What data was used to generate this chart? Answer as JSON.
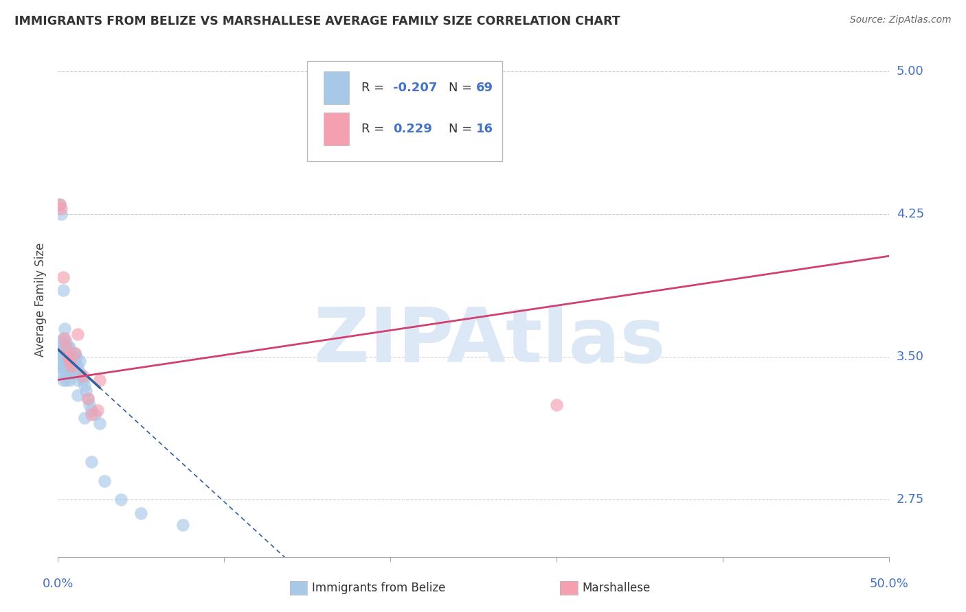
{
  "title": "IMMIGRANTS FROM BELIZE VS MARSHALLESE AVERAGE FAMILY SIZE CORRELATION CHART",
  "source": "Source: ZipAtlas.com",
  "ylabel": "Average Family Size",
  "watermark": "ZIPAtlas",
  "xlim": [
    0.0,
    0.5
  ],
  "ylim": [
    2.45,
    5.15
  ],
  "yticks": [
    2.75,
    3.5,
    4.25,
    5.0
  ],
  "belize_R": -0.207,
  "belize_N": 69,
  "marshallese_R": 0.229,
  "marshallese_N": 16,
  "belize_color": "#a8c8e8",
  "marshallese_color": "#f4a0b0",
  "belize_line_color": "#3060a0",
  "marshallese_line_color": "#d04070",
  "legend_text_color": "#4472c4",
  "axis_color": "#4472c4",
  "background_color": "#ffffff",
  "grid_color": "#cccccc",
  "title_color": "#333333",
  "watermark_color": "#dce8f5",
  "belize_x": [
    0.001,
    0.001,
    0.001,
    0.002,
    0.002,
    0.002,
    0.002,
    0.003,
    0.003,
    0.003,
    0.003,
    0.003,
    0.004,
    0.004,
    0.004,
    0.004,
    0.005,
    0.005,
    0.005,
    0.005,
    0.005,
    0.006,
    0.006,
    0.006,
    0.006,
    0.007,
    0.007,
    0.007,
    0.007,
    0.007,
    0.008,
    0.008,
    0.008,
    0.009,
    0.009,
    0.01,
    0.01,
    0.01,
    0.011,
    0.011,
    0.012,
    0.012,
    0.013,
    0.013,
    0.014,
    0.015,
    0.016,
    0.017,
    0.018,
    0.019,
    0.02,
    0.022,
    0.025,
    0.001,
    0.002,
    0.003,
    0.004,
    0.005,
    0.006,
    0.007,
    0.008,
    0.009,
    0.012,
    0.016,
    0.02,
    0.028,
    0.038,
    0.05,
    0.075
  ],
  "belize_y": [
    3.5,
    3.45,
    3.55,
    3.52,
    3.48,
    3.58,
    3.42,
    3.55,
    3.5,
    3.45,
    3.6,
    3.38,
    3.52,
    3.48,
    3.55,
    3.42,
    3.5,
    3.55,
    3.45,
    3.38,
    3.52,
    3.48,
    3.55,
    3.42,
    3.5,
    3.55,
    3.48,
    3.52,
    3.42,
    3.38,
    3.52,
    3.48,
    3.45,
    3.5,
    3.42,
    3.52,
    3.48,
    3.45,
    3.5,
    3.42,
    3.45,
    3.38,
    3.48,
    3.42,
    3.4,
    3.38,
    3.35,
    3.32,
    3.28,
    3.25,
    3.22,
    3.2,
    3.15,
    4.3,
    4.25,
    3.85,
    3.65,
    3.58,
    3.52,
    3.48,
    3.45,
    3.42,
    3.3,
    3.18,
    2.95,
    2.85,
    2.75,
    2.68,
    2.62
  ],
  "marsh_x": [
    0.001,
    0.002,
    0.003,
    0.004,
    0.005,
    0.006,
    0.007,
    0.01,
    0.015,
    0.018,
    0.024,
    0.012,
    0.008,
    0.02,
    0.025,
    0.3
  ],
  "marsh_y": [
    4.3,
    4.28,
    3.92,
    3.6,
    3.55,
    3.5,
    3.48,
    3.52,
    3.4,
    3.28,
    3.22,
    3.62,
    3.45,
    3.2,
    3.38,
    3.25
  ]
}
